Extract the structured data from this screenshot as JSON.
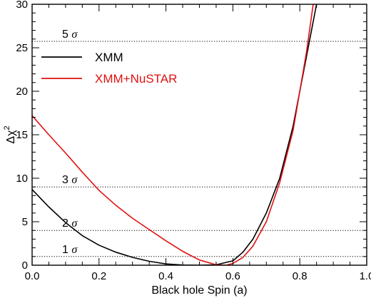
{
  "chart_data": {
    "type": "line",
    "xlabel": "Black hole Spin (a)",
    "ylabel_base": "Δχ",
    "ylabel_sup": "2",
    "xlim": [
      0.0,
      1.0
    ],
    "ylim": [
      0,
      30
    ],
    "xticks": [
      0.0,
      0.2,
      0.4,
      0.6,
      0.8,
      1.0
    ],
    "xtick_labels": [
      "0.0",
      "0.2",
      "0.4",
      "0.6",
      "0.8",
      "1.0"
    ],
    "yticks": [
      0,
      5,
      10,
      15,
      20,
      25,
      30
    ],
    "ytick_labels": [
      "0",
      "5",
      "10",
      "15",
      "20",
      "25",
      "30"
    ],
    "grid": false,
    "legend_position": "top-left",
    "reference_lines": [
      {
        "y": 1.0,
        "label_num": "1",
        "label_sym": "σ"
      },
      {
        "y": 4.0,
        "label_num": "2",
        "label_sym": "σ"
      },
      {
        "y": 9.0,
        "label_num": "3",
        "label_sym": "σ"
      },
      {
        "y": 25.74,
        "label_num": "5",
        "label_sym": "σ"
      }
    ],
    "series": [
      {
        "name": "XMM",
        "color": "#000000",
        "x": [
          0.0,
          0.05,
          0.1,
          0.15,
          0.2,
          0.25,
          0.3,
          0.35,
          0.4,
          0.45,
          0.5,
          0.55,
          0.6,
          0.63,
          0.66,
          0.7,
          0.74,
          0.78,
          0.82,
          0.85
        ],
        "y": [
          8.7,
          6.7,
          4.9,
          3.4,
          2.3,
          1.5,
          0.9,
          0.45,
          0.15,
          0.02,
          0.0,
          0.05,
          0.5,
          1.5,
          3.0,
          6.0,
          10.0,
          16.0,
          24.0,
          30.0
        ]
      },
      {
        "name": "XMM+NuSTAR",
        "color": "#e01010",
        "x": [
          0.0,
          0.05,
          0.1,
          0.15,
          0.2,
          0.25,
          0.3,
          0.35,
          0.4,
          0.45,
          0.5,
          0.55,
          0.58,
          0.6,
          0.63,
          0.66,
          0.7,
          0.74,
          0.78,
          0.82,
          0.84
        ],
        "y": [
          17.2,
          15.0,
          12.9,
          10.7,
          8.6,
          6.9,
          5.4,
          4.1,
          2.8,
          1.6,
          0.6,
          0.05,
          0.0,
          0.2,
          0.9,
          2.2,
          5.0,
          9.5,
          15.5,
          24.5,
          30.0
        ]
      }
    ]
  }
}
